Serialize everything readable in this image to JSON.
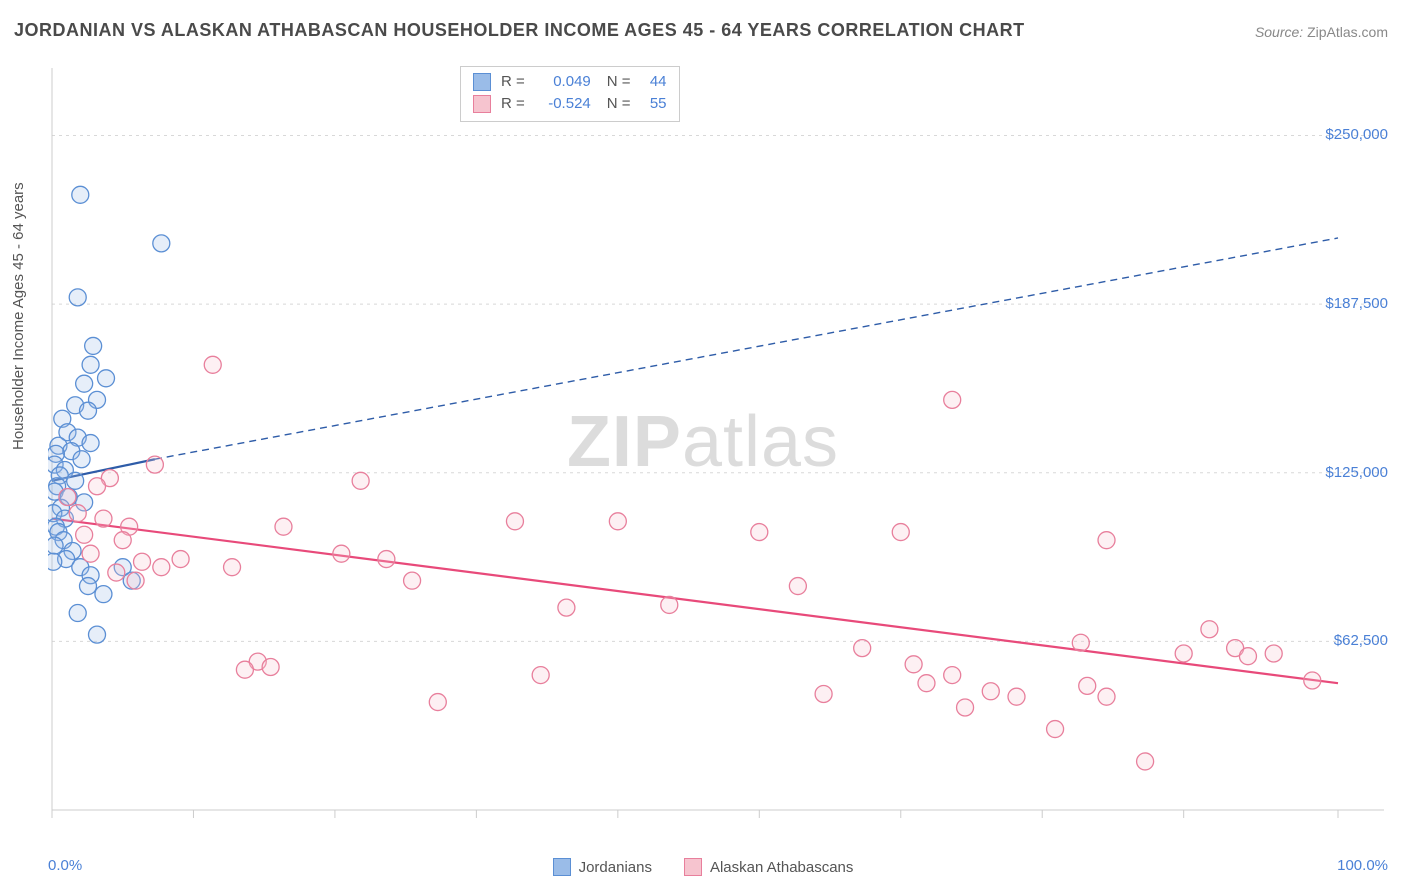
{
  "title": "JORDANIAN VS ALASKAN ATHABASCAN HOUSEHOLDER INCOME AGES 45 - 64 YEARS CORRELATION CHART",
  "source_label": "Source:",
  "source_link": "ZipAtlas.com",
  "ylabel": "Householder Income Ages 45 - 64 years",
  "watermark_a": "ZIP",
  "watermark_b": "atlas",
  "chart": {
    "type": "scatter",
    "background_color": "#ffffff",
    "grid_color": "#d8d8d8",
    "axis_color": "#cccccc",
    "tick_color": "#cccccc",
    "xlim": [
      0,
      100
    ],
    "ylim": [
      0,
      275000
    ],
    "xticks": [
      0,
      11,
      22,
      33,
      44,
      55,
      66,
      77,
      88,
      100
    ],
    "xtick_labels": {
      "0": "0.0%",
      "100": "100.0%"
    },
    "yticks": [
      62500,
      125000,
      187500,
      250000
    ],
    "ytick_labels": [
      "$62,500",
      "$125,000",
      "$187,500",
      "$250,000"
    ],
    "marker_radius": 8.5,
    "marker_stroke_width": 1.3,
    "marker_fill_opacity": 0.25,
    "trend_solid_width": 2.2,
    "trend_dash_width": 1.4,
    "trend_dash": "7,5",
    "series": [
      {
        "name": "Jordanians",
        "color_fill": "#9abce8",
        "color_stroke": "#5b8fd4",
        "trend_color": "#2e5ca8",
        "trend": {
          "x1": 0,
          "y1": 122000,
          "x2": 8,
          "y2": 130000,
          "x2_ext": 100,
          "y2_ext": 212000
        },
        "R": "0.049",
        "N": "44",
        "points": [
          [
            2.2,
            228000
          ],
          [
            8.5,
            210000
          ],
          [
            2.0,
            190000
          ],
          [
            3.2,
            172000
          ],
          [
            3.0,
            165000
          ],
          [
            4.2,
            160000
          ],
          [
            2.5,
            158000
          ],
          [
            3.5,
            152000
          ],
          [
            1.8,
            150000
          ],
          [
            2.8,
            148000
          ],
          [
            0.8,
            145000
          ],
          [
            1.2,
            140000
          ],
          [
            2.0,
            138000
          ],
          [
            3.0,
            136000
          ],
          [
            0.5,
            135000
          ],
          [
            1.5,
            133000
          ],
          [
            0.3,
            132000
          ],
          [
            2.3,
            130000
          ],
          [
            0.2,
            128000
          ],
          [
            1.0,
            126000
          ],
          [
            0.6,
            124000
          ],
          [
            1.8,
            122000
          ],
          [
            0.4,
            120000
          ],
          [
            0.2,
            118000
          ],
          [
            1.3,
            116000
          ],
          [
            2.5,
            114000
          ],
          [
            0.7,
            112000
          ],
          [
            0.1,
            110000
          ],
          [
            1.0,
            108000
          ],
          [
            0.3,
            105000
          ],
          [
            0.5,
            103000
          ],
          [
            0.9,
            100000
          ],
          [
            0.2,
            98000
          ],
          [
            1.6,
            96000
          ],
          [
            1.1,
            93000
          ],
          [
            0.1,
            92000
          ],
          [
            2.2,
            90000
          ],
          [
            3.0,
            87000
          ],
          [
            2.8,
            83000
          ],
          [
            4.0,
            80000
          ],
          [
            2.0,
            73000
          ],
          [
            5.5,
            90000
          ],
          [
            6.2,
            85000
          ],
          [
            3.5,
            65000
          ]
        ]
      },
      {
        "name": "Alaskan Athabascans",
        "color_fill": "#f6c4cf",
        "color_stroke": "#e87f9c",
        "trend_color": "#e84a7a",
        "trend": {
          "x1": 0,
          "y1": 108000,
          "x2": 100,
          "y2": 47000
        },
        "R": "-0.524",
        "N": "55",
        "points": [
          [
            12.5,
            165000
          ],
          [
            70.0,
            152000
          ],
          [
            8.0,
            128000
          ],
          [
            4.5,
            123000
          ],
          [
            3.5,
            120000
          ],
          [
            1.2,
            116000
          ],
          [
            24.0,
            122000
          ],
          [
            2.0,
            110000
          ],
          [
            4.0,
            108000
          ],
          [
            6.0,
            105000
          ],
          [
            5.5,
            100000
          ],
          [
            2.5,
            102000
          ],
          [
            18.0,
            105000
          ],
          [
            36.0,
            107000
          ],
          [
            44.0,
            107000
          ],
          [
            55.0,
            103000
          ],
          [
            66.0,
            103000
          ],
          [
            82.0,
            100000
          ],
          [
            22.5,
            95000
          ],
          [
            26.0,
            93000
          ],
          [
            3.0,
            95000
          ],
          [
            7.0,
            92000
          ],
          [
            8.5,
            90000
          ],
          [
            5.0,
            88000
          ],
          [
            6.5,
            85000
          ],
          [
            10.0,
            93000
          ],
          [
            14.0,
            90000
          ],
          [
            28.0,
            85000
          ],
          [
            40.0,
            75000
          ],
          [
            48.0,
            76000
          ],
          [
            58.0,
            83000
          ],
          [
            38.0,
            50000
          ],
          [
            30.0,
            40000
          ],
          [
            16.0,
            55000
          ],
          [
            15.0,
            52000
          ],
          [
            17.0,
            53000
          ],
          [
            60.0,
            43000
          ],
          [
            63.0,
            60000
          ],
          [
            67.0,
            54000
          ],
          [
            68.0,
            47000
          ],
          [
            70.0,
            50000
          ],
          [
            71.0,
            38000
          ],
          [
            73.0,
            44000
          ],
          [
            75.0,
            42000
          ],
          [
            78.0,
            30000
          ],
          [
            80.0,
            62000
          ],
          [
            85.0,
            18000
          ],
          [
            88.0,
            58000
          ],
          [
            90.0,
            67000
          ],
          [
            92.0,
            60000
          ],
          [
            93.0,
            57000
          ],
          [
            95.0,
            58000
          ],
          [
            98.0,
            48000
          ],
          [
            80.5,
            46000
          ],
          [
            82.0,
            42000
          ]
        ]
      }
    ]
  },
  "legend_corr": {
    "R_label": "R =",
    "N_label": "N ="
  }
}
